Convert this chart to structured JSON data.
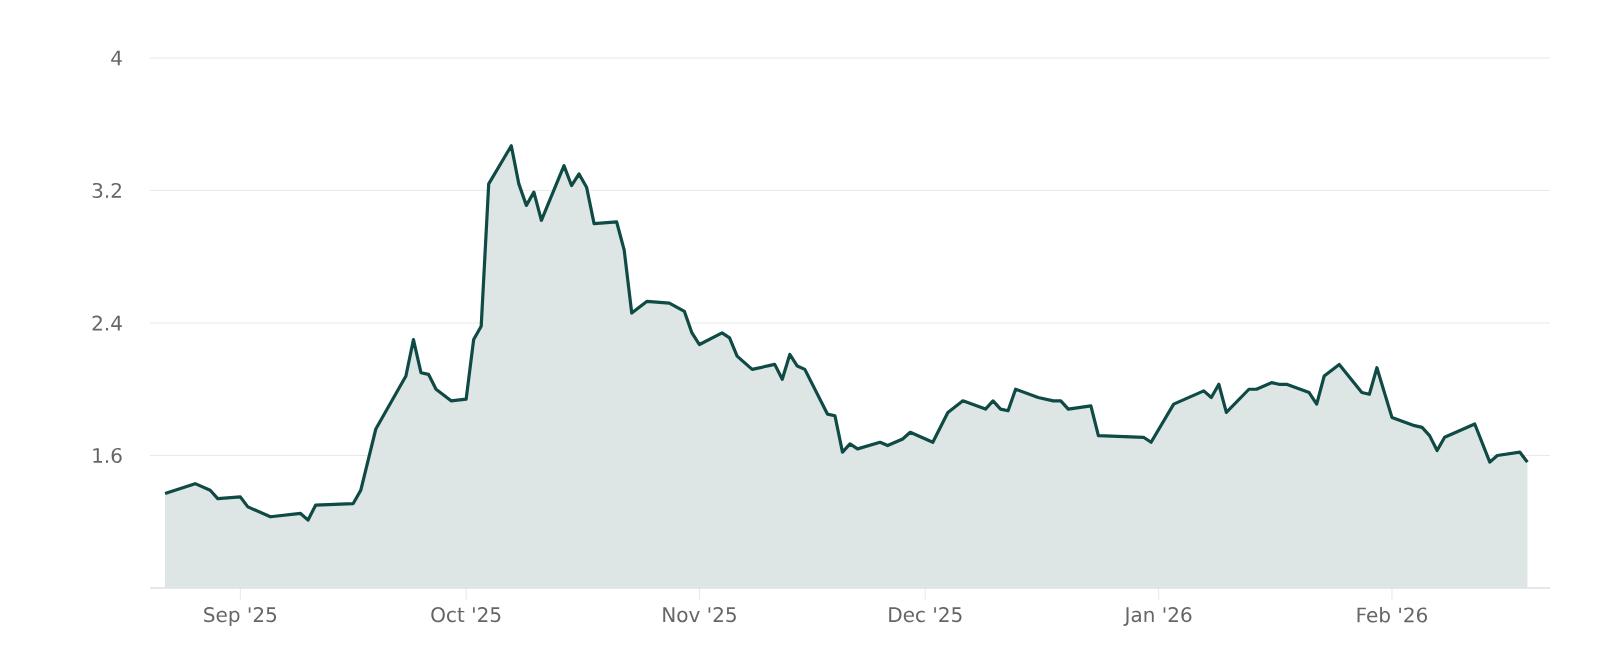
{
  "chart_data": {
    "type": "area",
    "color": "#0f4a45",
    "grid": "y",
    "ylim": [
      0.8,
      4
    ],
    "yticks": [
      1.6,
      2.4,
      3.2,
      4
    ],
    "xlim": [
      "2025-08-20",
      "2026-02-22"
    ],
    "xticks": [
      {
        "value": "2025-09-01",
        "label": "Sep '25"
      },
      {
        "value": "2025-10-01",
        "label": "Oct '25"
      },
      {
        "value": "2025-11-01",
        "label": "Nov '25"
      },
      {
        "value": "2025-12-01",
        "label": "Dec '25"
      },
      {
        "value": "2026-01-01",
        "label": "Jan '26"
      },
      {
        "value": "2026-02-01",
        "label": "Feb '26"
      }
    ],
    "x": [
      "2025-08-22",
      "2025-08-26",
      "2025-08-28",
      "2025-08-29",
      "2025-09-01",
      "2025-09-02",
      "2025-09-05",
      "2025-09-09",
      "2025-09-10",
      "2025-09-11",
      "2025-09-16",
      "2025-09-17",
      "2025-09-19",
      "2025-09-23",
      "2025-09-24",
      "2025-09-25",
      "2025-09-26",
      "2025-09-27",
      "2025-09-29",
      "2025-10-01",
      "2025-10-02",
      "2025-10-03",
      "2025-10-04",
      "2025-10-07",
      "2025-10-08",
      "2025-10-09",
      "2025-10-10",
      "2025-10-11",
      "2025-10-14",
      "2025-10-15",
      "2025-10-16",
      "2025-10-17",
      "2025-10-18",
      "2025-10-21",
      "2025-10-22",
      "2025-10-23",
      "2025-10-25",
      "2025-10-28",
      "2025-10-30",
      "2025-10-31",
      "2025-11-01",
      "2025-11-04",
      "2025-11-05",
      "2025-11-06",
      "2025-11-08",
      "2025-11-11",
      "2025-11-12",
      "2025-11-13",
      "2025-11-14",
      "2025-11-15",
      "2025-11-18",
      "2025-11-19",
      "2025-11-20",
      "2025-11-21",
      "2025-11-22",
      "2025-11-25",
      "2025-11-26",
      "2025-11-28",
      "2025-11-29",
      "2025-12-02",
      "2025-12-04",
      "2025-12-06",
      "2025-12-09",
      "2025-12-10",
      "2025-12-11",
      "2025-12-12",
      "2025-12-13",
      "2025-12-16",
      "2025-12-18",
      "2025-12-19",
      "2025-12-20",
      "2025-12-23",
      "2025-12-24",
      "2025-12-30",
      "2025-12-31",
      "2026-01-03",
      "2026-01-07",
      "2026-01-08",
      "2026-01-09",
      "2026-01-10",
      "2026-01-13",
      "2026-01-14",
      "2026-01-16",
      "2026-01-17",
      "2026-01-18",
      "2026-01-21",
      "2026-01-22",
      "2026-01-23",
      "2026-01-25",
      "2026-01-28",
      "2026-01-29",
      "2026-01-30",
      "2026-01-31",
      "2026-02-01",
      "2026-02-04",
      "2026-02-05",
      "2026-02-06",
      "2026-02-07",
      "2026-02-08",
      "2026-02-12",
      "2026-02-14",
      "2026-02-15",
      "2026-02-18",
      "2026-02-19"
    ],
    "values": [
      1.37,
      1.43,
      1.39,
      1.34,
      1.35,
      1.29,
      1.23,
      1.25,
      1.21,
      1.3,
      1.31,
      1.39,
      1.76,
      2.08,
      2.3,
      2.1,
      2.09,
      2.0,
      1.93,
      1.94,
      2.3,
      2.38,
      3.24,
      3.47,
      3.24,
      3.11,
      3.19,
      3.02,
      3.35,
      3.23,
      3.3,
      3.22,
      3.0,
      3.01,
      2.84,
      2.46,
      2.53,
      2.52,
      2.47,
      2.34,
      2.27,
      2.34,
      2.31,
      2.2,
      2.12,
      2.15,
      2.06,
      2.21,
      2.14,
      2.12,
      1.85,
      1.84,
      1.62,
      1.67,
      1.64,
      1.68,
      1.66,
      1.7,
      1.74,
      1.68,
      1.86,
      1.93,
      1.88,
      1.93,
      1.88,
      1.87,
      2.0,
      1.95,
      1.93,
      1.93,
      1.88,
      1.9,
      1.72,
      1.71,
      1.68,
      1.91,
      1.99,
      1.95,
      2.03,
      1.86,
      2.0,
      2.0,
      2.04,
      2.03,
      2.03,
      1.98,
      1.91,
      2.08,
      2.15,
      1.98,
      1.97,
      2.13,
      1.98,
      1.83,
      1.78,
      1.77,
      1.72,
      1.63,
      1.71,
      1.79,
      1.56,
      1.6,
      1.62,
      1.56
    ]
  }
}
